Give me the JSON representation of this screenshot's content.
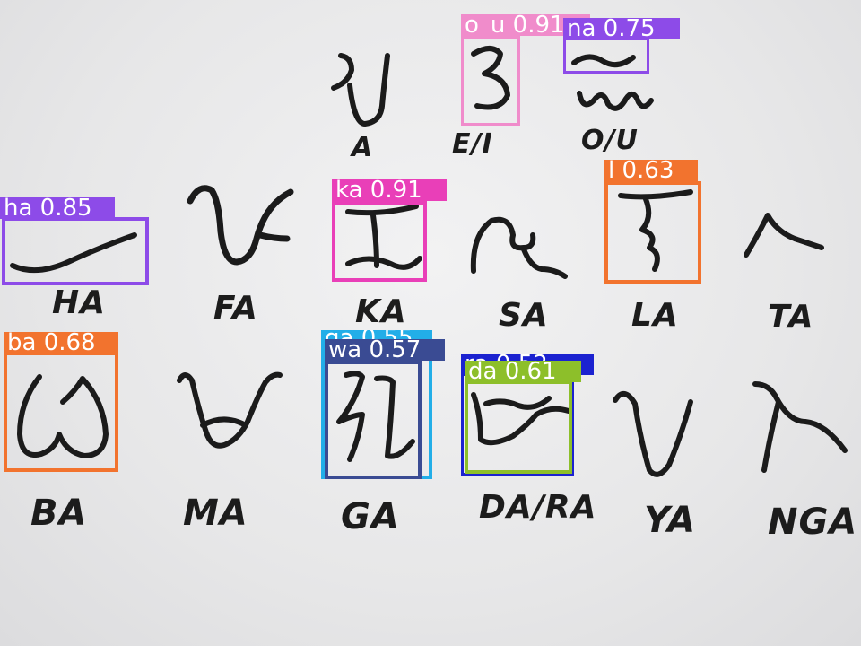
{
  "image": {
    "labels": {
      "a": "A",
      "e_i": "E/I",
      "o_u": "O/U",
      "ha": "HA",
      "fa": "FA",
      "ka": "KA",
      "sa": "SA",
      "la": "LA",
      "ta": "TA",
      "ba": "BA",
      "ma": "MA",
      "ga": "GA",
      "da_ra": "DA/RA",
      "ya": "YA",
      "nga": "NGA"
    },
    "detections": {
      "o_u": {
        "text": "o_u 0.91",
        "color": "#f08ccb"
      },
      "na": {
        "text": "na 0.75",
        "color": "#8d4be8"
      },
      "ha": {
        "text": "ha 0.85",
        "color": "#8d4be8"
      },
      "ka": {
        "text": "ka 0.91",
        "color": "#e93fb8"
      },
      "l": {
        "text": "l 0.63",
        "color": "#f2732e"
      },
      "ba": {
        "text": "ba 0.68",
        "color": "#f2732e"
      },
      "ga": {
        "text": "ga 0.55",
        "color": "#22aee8"
      },
      "wa": {
        "text": "wa 0.57",
        "color": "#3a4b93"
      },
      "ra": {
        "text": "ra 0.52",
        "color": "#1b22d0"
      },
      "da": {
        "text": "da 0.61",
        "color": "#8dbf2a"
      }
    }
  }
}
